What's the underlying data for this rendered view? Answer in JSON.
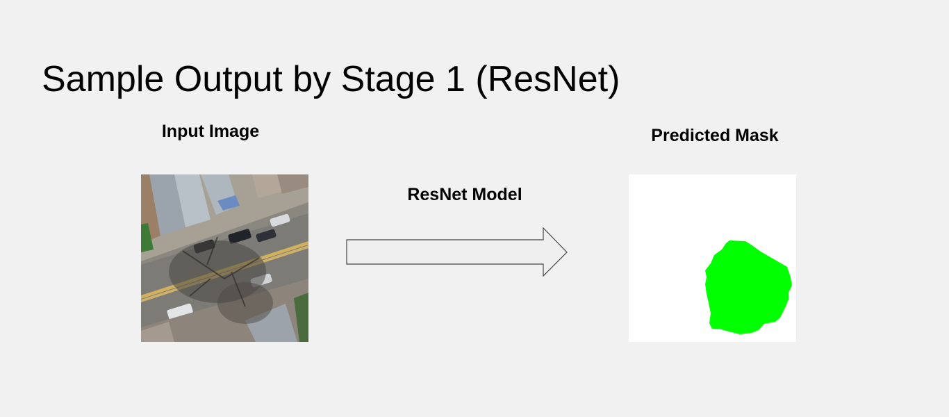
{
  "slide": {
    "title": "Sample Output by Stage 1 (ResNet)"
  },
  "labels": {
    "input": "Input Image",
    "model": "ResNet Model",
    "output": "Predicted Mask"
  },
  "colors": {
    "background": "#f1f1f1",
    "mask_background": "#ffffff",
    "mask_foreground": "#00ff00",
    "arrow_fill": "#efefef",
    "arrow_stroke": "#444444"
  },
  "icons": {
    "arrow": "right-arrow-icon"
  }
}
